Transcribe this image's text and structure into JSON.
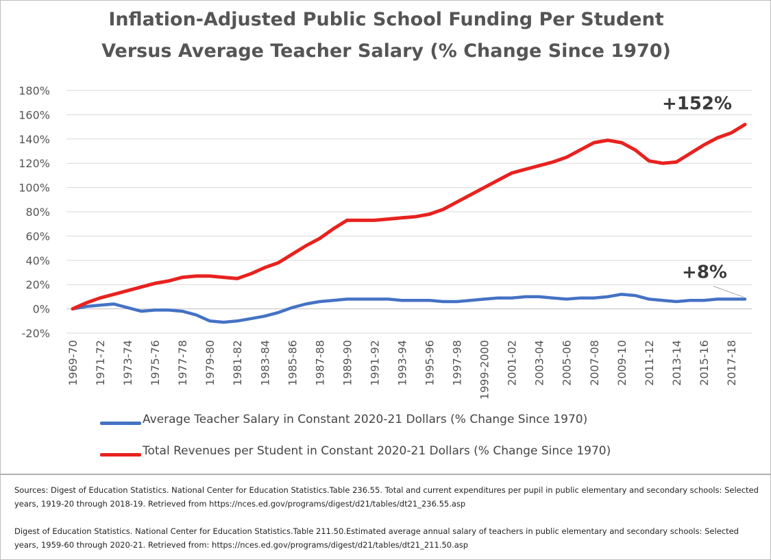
{
  "chart_data": {
    "type": "line",
    "title": [
      "Inflation-Adjusted Public School Funding Per Student",
      "Versus Average Teacher Salary (% Change Since 1970)"
    ],
    "xlabel": "",
    "ylabel": "",
    "ylim": [
      -20,
      180
    ],
    "y_ticks": [
      "180%",
      "160%",
      "140%",
      "120%",
      "100%",
      "80%",
      "60%",
      "40%",
      "20%",
      "0%",
      "-20%"
    ],
    "y_tick_values": [
      180,
      160,
      140,
      120,
      100,
      80,
      60,
      40,
      20,
      0,
      -20
    ],
    "grid": true,
    "legend_position": "bottom",
    "x_labels": [
      "1969-70",
      "1971-72",
      "1973-74",
      "1975-76",
      "1977-78",
      "1979-80",
      "1981-82",
      "1983-84",
      "1985-86",
      "1987-88",
      "1989-90",
      "1991-92",
      "1993-94",
      "1995-96",
      "1997-98",
      "1999-2000",
      "2001-02",
      "2003-04",
      "2005-06",
      "2007-08",
      "2009-10",
      "2011-12",
      "2013-14",
      "2015-16",
      "2017-18"
    ],
    "categories": [
      "1969-70",
      "1970-71",
      "1971-72",
      "1972-73",
      "1973-74",
      "1974-75",
      "1975-76",
      "1976-77",
      "1977-78",
      "1978-79",
      "1979-80",
      "1980-81",
      "1981-82",
      "1982-83",
      "1983-84",
      "1984-85",
      "1985-86",
      "1986-87",
      "1987-88",
      "1988-89",
      "1989-90",
      "1990-91",
      "1991-92",
      "1992-93",
      "1993-94",
      "1994-95",
      "1995-96",
      "1996-97",
      "1997-98",
      "1998-99",
      "1999-2000",
      "2000-01",
      "2001-02",
      "2002-03",
      "2003-04",
      "2004-05",
      "2005-06",
      "2006-07",
      "2007-08",
      "2008-09",
      "2009-10",
      "2010-11",
      "2011-12",
      "2012-13",
      "2013-14",
      "2014-15",
      "2015-16",
      "2016-17",
      "2017-18",
      "2018-19"
    ],
    "series": [
      {
        "name": "Average Teacher Salary in Constant 2020-21 Dollars (% Change Since 1970)",
        "color": "#4472c4",
        "values": [
          0,
          2,
          3,
          4,
          1,
          -2,
          -1,
          -1,
          -2,
          -5,
          -10,
          -11,
          -10,
          -8,
          -6,
          -3,
          1,
          4,
          6,
          7,
          8,
          8,
          8,
          8,
          7,
          7,
          7,
          6,
          6,
          7,
          8,
          9,
          9,
          10,
          10,
          9,
          8,
          9,
          9,
          10,
          12,
          11,
          8,
          7,
          6,
          7,
          7,
          8,
          8,
          8
        ]
      },
      {
        "name": "Total Revenues per Student in Constant 2020-21 Dollars (% Change Since 1970)",
        "color": "#e8221f",
        "values": [
          0,
          5,
          9,
          12,
          15,
          18,
          21,
          23,
          26,
          27,
          27,
          26,
          25,
          29,
          34,
          38,
          45,
          52,
          58,
          66,
          73,
          73,
          73,
          74,
          75,
          76,
          78,
          82,
          88,
          94,
          100,
          106,
          112,
          115,
          118,
          121,
          125,
          131,
          137,
          139,
          137,
          131,
          122,
          120,
          121,
          128,
          135,
          141,
          145,
          152
        ]
      }
    ],
    "annotations": [
      {
        "text": "+152%",
        "series": 1,
        "category": "2018-19"
      },
      {
        "text": "+8%",
        "series": 0,
        "category": "2018-19"
      }
    ]
  },
  "legend": {
    "items": [
      {
        "label": "Average Teacher Salary in Constant 2020-21 Dollars (% Change Since 1970)",
        "color": "#4472c4"
      },
      {
        "label": "Total Revenues per Student in Constant 2020-21 Dollars (% Change Since 1970)",
        "color": "#e8221f"
      }
    ]
  },
  "sources": [
    "Sources: Digest of Education Statistics. National Center for Education Statistics.Table 236.55. Total and current expenditures per pupil in public elementary and secondary schools: Selected years, 1919-20 through 2018-19. Retrieved from https://nces.ed.gov/programs/digest/d21/tables/dt21_236.55.asp",
    "Digest of Education Statistics. National Center for Education Statistics.Table 211.50.Estimated average annual salary of teachers in public elementary and secondary schools: Selected years, 1959-60 through 2020-21. Retrieved from: https://nces.ed.gov/programs/digest/d21/tables/dt21_211.50.asp"
  ]
}
